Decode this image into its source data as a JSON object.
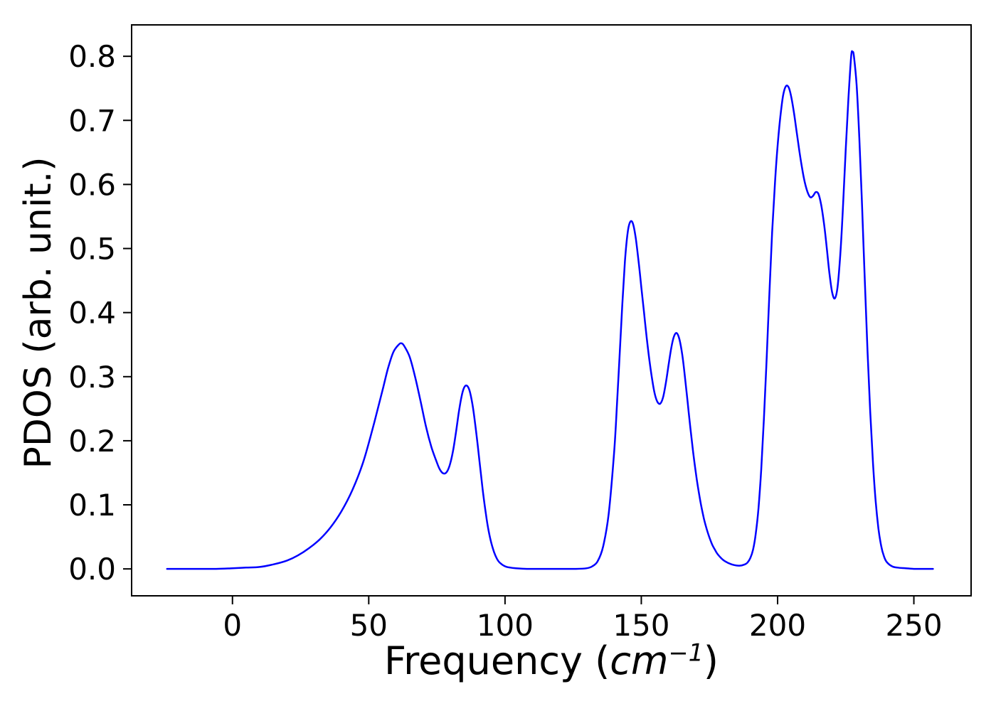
{
  "chart_data": {
    "type": "line",
    "title": "",
    "xlabel": {
      "full": "Frequency (cm⁻¹)",
      "prefix": "Frequency (",
      "italic": "cm",
      "superscript": "−1",
      "suffix": ")"
    },
    "ylabel": "PDOS (arb. unit.)",
    "xlim": [
      -37,
      271
    ],
    "ylim": [
      -0.042,
      0.849
    ],
    "x_ticks": [
      0,
      50,
      100,
      150,
      200,
      250
    ],
    "x_tick_labels": [
      "0",
      "50",
      "100",
      "150",
      "200",
      "250"
    ],
    "y_ticks": [
      0.0,
      0.1,
      0.2,
      0.3,
      0.4,
      0.5,
      0.6,
      0.7,
      0.8
    ],
    "y_tick_labels": [
      "0.0",
      "0.1",
      "0.2",
      "0.3",
      "0.4",
      "0.5",
      "0.6",
      "0.7",
      "0.8"
    ],
    "grid": false,
    "legend": null,
    "axis_color": "#000000",
    "background_color": "#ffffff",
    "series": [
      {
        "name": "PDOS",
        "color": "#0000ff",
        "line_width": 2.5,
        "points": [
          [
            -24,
            0
          ],
          [
            -18,
            0
          ],
          [
            -12,
            0
          ],
          [
            -6,
            0
          ],
          [
            0,
            0.001
          ],
          [
            5,
            0.002
          ],
          [
            10,
            0.003
          ],
          [
            15,
            0.007
          ],
          [
            20,
            0.013
          ],
          [
            24,
            0.021
          ],
          [
            28,
            0.032
          ],
          [
            32,
            0.046
          ],
          [
            36,
            0.065
          ],
          [
            40,
            0.09
          ],
          [
            44,
            0.123
          ],
          [
            48,
            0.167
          ],
          [
            52,
            0.228
          ],
          [
            55,
            0.278
          ],
          [
            57,
            0.312
          ],
          [
            59,
            0.338
          ],
          [
            61,
            0.35
          ],
          [
            62,
            0.352
          ],
          [
            63,
            0.348
          ],
          [
            65,
            0.331
          ],
          [
            67,
            0.3
          ],
          [
            69,
            0.262
          ],
          [
            71,
            0.222
          ],
          [
            73,
            0.19
          ],
          [
            75,
            0.166
          ],
          [
            76,
            0.156
          ],
          [
            77,
            0.15
          ],
          [
            78,
            0.149
          ],
          [
            79,
            0.154
          ],
          [
            80,
            0.166
          ],
          [
            81,
            0.186
          ],
          [
            82,
            0.213
          ],
          [
            83,
            0.243
          ],
          [
            84,
            0.268
          ],
          [
            85,
            0.283
          ],
          [
            86,
            0.286
          ],
          [
            87,
            0.278
          ],
          [
            88,
            0.258
          ],
          [
            89,
            0.228
          ],
          [
            90,
            0.192
          ],
          [
            91,
            0.154
          ],
          [
            92,
            0.117
          ],
          [
            93,
            0.085
          ],
          [
            94,
            0.059
          ],
          [
            95,
            0.04
          ],
          [
            96,
            0.026
          ],
          [
            97,
            0.016
          ],
          [
            98,
            0.01
          ],
          [
            100,
            0.004
          ],
          [
            102,
            0.002
          ],
          [
            104,
            0.001
          ],
          [
            108,
            0
          ],
          [
            114,
            0
          ],
          [
            120,
            0
          ],
          [
            126,
            0
          ],
          [
            130,
            0.001
          ],
          [
            132,
            0.004
          ],
          [
            134,
            0.012
          ],
          [
            136,
            0.035
          ],
          [
            138,
            0.085
          ],
          [
            140,
            0.18
          ],
          [
            141,
            0.25
          ],
          [
            142,
            0.33
          ],
          [
            143,
            0.41
          ],
          [
            144,
            0.48
          ],
          [
            145,
            0.525
          ],
          [
            146,
            0.542
          ],
          [
            147,
            0.538
          ],
          [
            148,
            0.515
          ],
          [
            149,
            0.48
          ],
          [
            150,
            0.44
          ],
          [
            151,
            0.4
          ],
          [
            152,
            0.36
          ],
          [
            153,
            0.325
          ],
          [
            154,
            0.295
          ],
          [
            155,
            0.272
          ],
          [
            156,
            0.26
          ],
          [
            157,
            0.258
          ],
          [
            158,
            0.268
          ],
          [
            159,
            0.29
          ],
          [
            160,
            0.318
          ],
          [
            161,
            0.345
          ],
          [
            162,
            0.363
          ],
          [
            163,
            0.368
          ],
          [
            164,
            0.358
          ],
          [
            165,
            0.335
          ],
          [
            166,
            0.3
          ],
          [
            167,
            0.26
          ],
          [
            168,
            0.22
          ],
          [
            169,
            0.183
          ],
          [
            170,
            0.15
          ],
          [
            171,
            0.122
          ],
          [
            172,
            0.098
          ],
          [
            173,
            0.078
          ],
          [
            174,
            0.062
          ],
          [
            175,
            0.049
          ],
          [
            176,
            0.038
          ],
          [
            177,
            0.03
          ],
          [
            178,
            0.023
          ],
          [
            180,
            0.014
          ],
          [
            182,
            0.009
          ],
          [
            184,
            0.006
          ],
          [
            186,
            0.005
          ],
          [
            188,
            0.007
          ],
          [
            189,
            0.01
          ],
          [
            190,
            0.017
          ],
          [
            191,
            0.03
          ],
          [
            192,
            0.055
          ],
          [
            193,
            0.095
          ],
          [
            194,
            0.155
          ],
          [
            195,
            0.235
          ],
          [
            196,
            0.33
          ],
          [
            197,
            0.43
          ],
          [
            198,
            0.525
          ],
          [
            199,
            0.6
          ],
          [
            200,
            0.66
          ],
          [
            201,
            0.705
          ],
          [
            202,
            0.738
          ],
          [
            203,
            0.753
          ],
          [
            204,
            0.752
          ],
          [
            205,
            0.737
          ],
          [
            206,
            0.712
          ],
          [
            207,
            0.682
          ],
          [
            208,
            0.652
          ],
          [
            209,
            0.625
          ],
          [
            210,
            0.603
          ],
          [
            211,
            0.588
          ],
          [
            212,
            0.58
          ],
          [
            213,
            0.582
          ],
          [
            214,
            0.588
          ],
          [
            215,
            0.585
          ],
          [
            216,
            0.568
          ],
          [
            217,
            0.54
          ],
          [
            218,
            0.503
          ],
          [
            219,
            0.462
          ],
          [
            220,
            0.432
          ],
          [
            221,
            0.422
          ],
          [
            222,
            0.44
          ],
          [
            223,
            0.49
          ],
          [
            224,
            0.565
          ],
          [
            225,
            0.655
          ],
          [
            226,
            0.735
          ],
          [
            227,
            0.8
          ],
          [
            227.5,
            0.807
          ],
          [
            228,
            0.8
          ],
          [
            229,
            0.755
          ],
          [
            230,
            0.672
          ],
          [
            231,
            0.565
          ],
          [
            232,
            0.45
          ],
          [
            233,
            0.34
          ],
          [
            234,
            0.245
          ],
          [
            235,
            0.165
          ],
          [
            236,
            0.105
          ],
          [
            237,
            0.063
          ],
          [
            238,
            0.036
          ],
          [
            239,
            0.02
          ],
          [
            240,
            0.011
          ],
          [
            242,
            0.004
          ],
          [
            244,
            0.002
          ],
          [
            247,
            0.001
          ],
          [
            250,
            0
          ],
          [
            253,
            0
          ],
          [
            257,
            0
          ]
        ]
      }
    ]
  }
}
